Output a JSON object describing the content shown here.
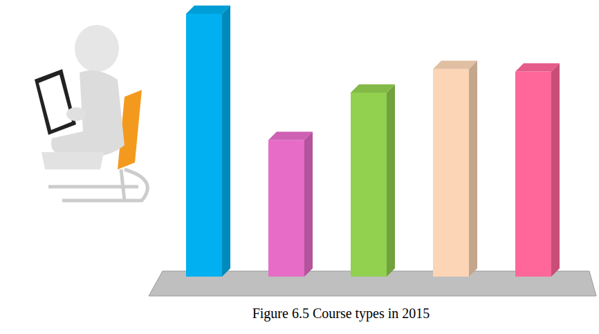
{
  "chart_data": {
    "type": "bar",
    "title": "Figure 6.5 Course types in 2015",
    "categories": [
      null,
      null,
      null,
      null,
      null
    ],
    "values": [
      100,
      52,
      70,
      79,
      78
    ],
    "colors": [
      "#00b0f0",
      "#e66cc8",
      "#92d050",
      "#fbd5b5",
      "#ff6699"
    ],
    "tick_labels": false,
    "grid": false
  }
}
